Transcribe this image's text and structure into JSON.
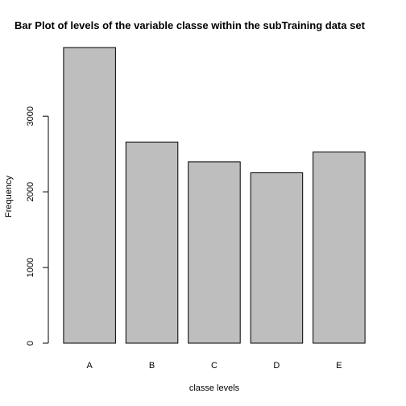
{
  "chart_data": {
    "type": "bar",
    "title": "Bar Plot of levels of the variable classe within the subTraining data set",
    "xlabel": "classe levels",
    "ylabel": "Frequency",
    "categories": [
      "A",
      "B",
      "C",
      "D",
      "E"
    ],
    "values": [
      3907,
      2658,
      2396,
      2252,
      2525
    ],
    "ylim": [
      0,
      3907
    ],
    "yticks": [
      0,
      1000,
      2000,
      3000
    ],
    "grid": false,
    "bar_color": "#bebebe"
  }
}
